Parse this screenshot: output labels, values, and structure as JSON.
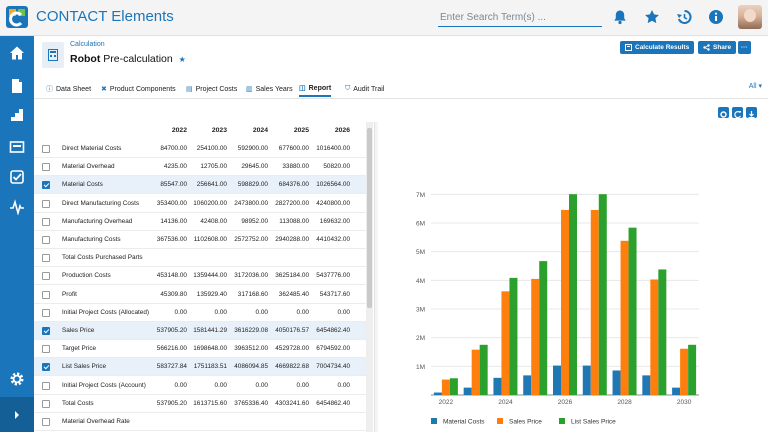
{
  "app": {
    "title": "CONTACT Elements"
  },
  "search": {
    "placeholder": "Enter Search Term(s) ..."
  },
  "header": {
    "breadcrumb": "Calculation",
    "object_name_bold": "Robot",
    "object_name": "Pre-calculation",
    "buttons": {
      "calculate": "Calculate Results",
      "share": "Share",
      "more": "···"
    }
  },
  "tabs": [
    {
      "label": "Data Sheet",
      "icon": "info-icon"
    },
    {
      "label": "Product Components",
      "icon": "components-icon"
    },
    {
      "label": "Project Costs",
      "icon": "document-icon"
    },
    {
      "label": "Sales Years",
      "icon": "chart-icon"
    },
    {
      "label": "Report",
      "icon": "report-icon",
      "active": true
    },
    {
      "label": "Audit Trail",
      "icon": "shield-icon"
    }
  ],
  "filter": {
    "selected": "All"
  },
  "table": {
    "columns": [
      "2022",
      "2023",
      "2024",
      "2025",
      "2026"
    ],
    "rows": [
      {
        "label": "Direct Material Costs",
        "checked": false,
        "values": [
          "84700.00",
          "254100.00",
          "592900.00",
          "677600.00",
          "1016400.00"
        ]
      },
      {
        "label": "Material Overhead",
        "checked": false,
        "values": [
          "4235.00",
          "12705.00",
          "29645.00",
          "33880.00",
          "50820.00"
        ]
      },
      {
        "label": "Material Costs",
        "checked": true,
        "values": [
          "85547.00",
          "256641.00",
          "598829.00",
          "684376.00",
          "1026564.00"
        ]
      },
      {
        "label": "Direct Manufacturing Costs",
        "checked": false,
        "values": [
          "353400.00",
          "1060200.00",
          "2473800.00",
          "2827200.00",
          "4240800.00"
        ]
      },
      {
        "label": "Manufacturing Overhead",
        "checked": false,
        "values": [
          "14136.00",
          "42408.00",
          "98952.00",
          "113088.00",
          "169632.00"
        ]
      },
      {
        "label": "Manufacturing Costs",
        "checked": false,
        "values": [
          "367536.00",
          "1102608.00",
          "2572752.00",
          "2940288.00",
          "4410432.00"
        ]
      },
      {
        "label": "Total Costs Purchased Parts",
        "checked": false,
        "values": [
          "",
          "",
          "",
          "",
          ""
        ]
      },
      {
        "label": "Production Costs",
        "checked": false,
        "values": [
          "453148.00",
          "1359444.00",
          "3172036.00",
          "3625184.00",
          "5437776.00"
        ]
      },
      {
        "label": "Profit",
        "checked": false,
        "values": [
          "45309.80",
          "135929.40",
          "317168.60",
          "362485.40",
          "543717.60"
        ]
      },
      {
        "label": "Initial Project Costs (Allocated)",
        "checked": false,
        "values": [
          "0.00",
          "0.00",
          "0.00",
          "0.00",
          "0.00"
        ]
      },
      {
        "label": "Sales Price",
        "checked": true,
        "values": [
          "537905.20",
          "1581441.29",
          "3616229.08",
          "4050176.57",
          "6454862.40"
        ]
      },
      {
        "label": "Target Price",
        "checked": false,
        "values": [
          "566216.00",
          "1698648.00",
          "3963512.00",
          "4529728.00",
          "6794592.00"
        ]
      },
      {
        "label": "List Sales Price",
        "checked": true,
        "values": [
          "583727.84",
          "1751183.51",
          "4086094.85",
          "4669822.68",
          "7004734.40"
        ]
      },
      {
        "label": "Initial Project Costs (Account)",
        "checked": false,
        "values": [
          "0.00",
          "0.00",
          "0.00",
          "0.00",
          "0.00"
        ]
      },
      {
        "label": "Total Costs",
        "checked": false,
        "values": [
          "537905.20",
          "1613715.60",
          "3765336.40",
          "4303241.60",
          "6454862.40"
        ]
      },
      {
        "label": "Material Overhead Rate",
        "checked": false,
        "values": [
          "",
          "",
          "",
          "",
          ""
        ]
      }
    ]
  },
  "colors": {
    "accent": "#1b75bb",
    "material": "#1f77b4",
    "sales": "#ff7f0e",
    "list": "#2ca02c"
  },
  "chart_data": {
    "type": "bar",
    "categories": [
      "2022",
      "2023",
      "2024",
      "2025",
      "2026",
      "2027",
      "2028",
      "2029",
      "2030"
    ],
    "x_tick_labels": [
      "2022",
      "2024",
      "2026",
      "2028",
      "2030"
    ],
    "y_tick_labels": [
      "1M",
      "2M",
      "3M",
      "4M",
      "5M",
      "6M",
      "7M"
    ],
    "ylim": [
      0,
      7500000
    ],
    "grid": true,
    "legend_position": "bottom",
    "series": [
      {
        "name": "Material Costs",
        "values": [
          85547,
          256641,
          598829,
          684376,
          1026564,
          1026564,
          855470,
          684376,
          256641
        ]
      },
      {
        "name": "Sales Price",
        "values": [
          537905,
          1581441,
          3616229,
          4050177,
          6454862,
          6454862,
          5379052,
          4030000,
          1613716
        ]
      },
      {
        "name": "List Sales Price",
        "values": [
          583728,
          1751184,
          4086095,
          4669823,
          7004734,
          7004734,
          5837278,
          4380000,
          1751184
        ]
      }
    ]
  }
}
